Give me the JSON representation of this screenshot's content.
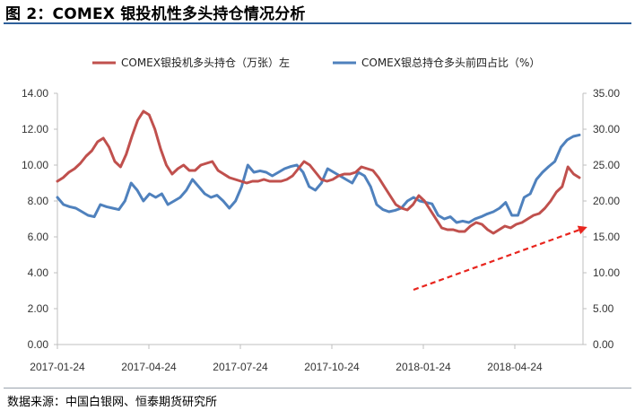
{
  "header": {
    "title": "图 2：COMEX 银投机性多头持仓情况分析"
  },
  "footer": {
    "source": "数据来源：中国白银网、恒泰期货研究所"
  },
  "colors": {
    "series1": "#c0504d",
    "series2": "#4f81bd",
    "arrow": "#e8251e",
    "title_rule": "#2d5f9a"
  },
  "chart_data": {
    "type": "line",
    "title": "",
    "x_tick_labels": [
      "2017-01-24",
      "2017-04-24",
      "2017-07-24",
      "2017-10-24",
      "2018-01-24",
      "2018-04-24"
    ],
    "y_left": {
      "ticks": [
        "0.00",
        "2.00",
        "4.00",
        "6.00",
        "8.00",
        "10.00",
        "12.00",
        "14.00"
      ],
      "range": [
        0,
        14
      ]
    },
    "y_right": {
      "ticks": [
        "0.00",
        "5.00",
        "10.00",
        "15.00",
        "20.00",
        "25.00",
        "30.00",
        "35.00"
      ],
      "range": [
        0,
        35
      ]
    },
    "legend_position": "top",
    "grid": false,
    "annotation": "dashed red upward arrow indicating rising trend",
    "series": [
      {
        "name": "COMEX银投机多头持仓（万张）左",
        "axis": "left",
        "values": [
          9.1,
          9.3,
          9.6,
          9.8,
          10.1,
          10.5,
          10.8,
          11.3,
          11.5,
          11.0,
          10.2,
          9.9,
          10.6,
          11.6,
          12.5,
          13.0,
          12.8,
          12.0,
          10.9,
          10.0,
          9.5,
          9.8,
          10.0,
          9.7,
          9.7,
          10.0,
          10.1,
          10.2,
          9.7,
          9.5,
          9.3,
          9.2,
          9.1,
          9.0,
          9.1,
          9.1,
          9.2,
          9.1,
          9.1,
          9.1,
          9.2,
          9.4,
          9.8,
          10.2,
          10.0,
          9.6,
          9.2,
          9.1,
          9.2,
          9.4,
          9.5,
          9.5,
          9.6,
          9.9,
          9.8,
          9.7,
          9.3,
          8.8,
          8.3,
          7.8,
          7.6,
          7.5,
          7.8,
          8.3,
          8.0,
          7.5,
          7.0,
          6.5,
          6.4,
          6.4,
          6.3,
          6.3,
          6.6,
          6.8,
          6.7,
          6.4,
          6.2,
          6.4,
          6.6,
          6.5,
          6.7,
          6.8,
          7.0,
          7.2,
          7.3,
          7.6,
          8.0,
          8.5,
          8.8,
          9.9,
          9.5,
          9.3
        ],
        "points": 92
      },
      {
        "name": "COMEX银总持仓多头前四占比（%）",
        "axis": "right",
        "values": [
          20.5,
          19.5,
          19.2,
          19.0,
          18.5,
          18.0,
          17.8,
          19.5,
          19.2,
          19.0,
          18.8,
          20.0,
          22.5,
          21.5,
          20.0,
          21.0,
          20.5,
          21.0,
          19.5,
          20.0,
          20.5,
          21.5,
          23.0,
          22.0,
          21.0,
          20.5,
          20.8,
          20.0,
          19.0,
          20.0,
          22.0,
          25.0,
          24.0,
          24.2,
          24.0,
          23.5,
          24.0,
          24.5,
          24.8,
          25.0,
          24.0,
          22.0,
          21.5,
          22.5,
          24.5,
          24.0,
          23.5,
          23.0,
          22.5,
          24.0,
          23.5,
          22.0,
          19.5,
          18.8,
          18.5,
          18.7,
          19.0,
          20.0,
          20.5,
          20.0,
          19.8,
          19.6,
          18.0,
          17.5,
          17.8,
          17.0,
          17.2,
          17.0,
          17.5,
          17.8,
          18.2,
          18.5,
          19.0,
          19.8,
          18.0,
          18.0,
          20.5,
          21.0,
          23.0,
          24.0,
          24.8,
          25.5,
          27.5,
          28.5,
          29.0,
          29.2
        ],
        "points": 86
      }
    ]
  }
}
